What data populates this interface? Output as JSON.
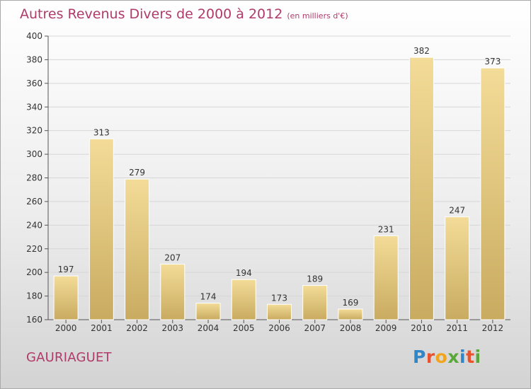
{
  "chart_data": {
    "type": "bar",
    "title": "Autres Revenus Divers de 2000 à 2012",
    "subtitle": "(en milliers d'€)",
    "categories": [
      "2000",
      "2001",
      "2002",
      "2003",
      "2004",
      "2005",
      "2006",
      "2007",
      "2008",
      "2009",
      "2010",
      "2011",
      "2012"
    ],
    "values": [
      197,
      313,
      279,
      207,
      174,
      194,
      173,
      189,
      169,
      231,
      382,
      247,
      373
    ],
    "ylim": [
      160,
      400
    ],
    "yticks": [
      160,
      180,
      200,
      220,
      240,
      260,
      280,
      300,
      320,
      340,
      360,
      380,
      400
    ],
    "grid": true,
    "bar_color": "#e4c67c"
  },
  "footer": {
    "location": "GAURIAGUET"
  },
  "logo": {
    "letters": [
      {
        "ch": "P",
        "color": "#2f86c8"
      },
      {
        "ch": "r",
        "color": "#e9522c"
      },
      {
        "ch": "o",
        "color": "#f2a51c"
      },
      {
        "ch": "x",
        "color": "#5aa83a"
      },
      {
        "ch": "i",
        "color": "#2f86c8"
      },
      {
        "ch": "t",
        "color": "#e9522c"
      },
      {
        "ch": "i",
        "color": "#5aa83a"
      }
    ]
  },
  "colors": {
    "title": "#b03a6a",
    "bar": "#e4c67c"
  }
}
